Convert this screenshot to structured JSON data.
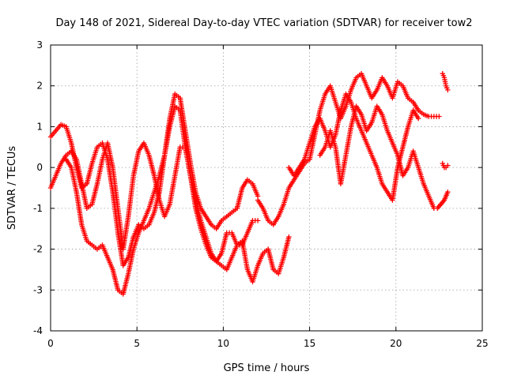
{
  "chart_data": {
    "type": "scatter",
    "title": "Day 148 of 2021, Sidereal Day-to-day VTEC variation (SDTVAR) for receiver tow2",
    "xlabel": "GPS time / hours",
    "ylabel": "SDTVAR / TECUs",
    "xlim": [
      0,
      25
    ],
    "ylim": [
      -4,
      3
    ],
    "xticks": [
      "0",
      "5",
      "10",
      "15",
      "20",
      "25"
    ],
    "yticks": [
      "-4",
      "-3",
      "-2",
      "-1",
      "0",
      "1",
      "2",
      "3"
    ],
    "grid": true,
    "marker": "+",
    "color": "#ff0000",
    "series": [
      {
        "x": [
          0.0,
          0.3,
          0.6,
          0.9,
          1.2,
          1.5,
          1.8,
          2.1,
          2.4,
          2.7,
          3.0,
          3.3,
          3.6,
          3.9,
          4.2,
          4.5,
          4.8,
          5.1,
          5.4,
          5.7,
          6.0,
          6.3,
          6.6,
          6.9,
          7.2,
          7.5,
          7.8,
          8.1,
          8.4,
          8.7,
          9.0,
          9.3,
          9.6,
          9.9,
          10.2,
          10.5,
          10.8,
          11.1,
          11.4,
          11.7,
          12.0
        ],
        "y": [
          0.75,
          0.9,
          1.05,
          1.0,
          0.6,
          0.0,
          -0.5,
          -0.4,
          0.1,
          0.5,
          0.6,
          0.2,
          -0.6,
          -1.6,
          -2.4,
          -2.2,
          -1.7,
          -1.4,
          -1.5,
          -1.4,
          -1.1,
          -0.6,
          0.3,
          1.2,
          1.8,
          1.7,
          0.9,
          0.1,
          -0.6,
          -1.0,
          -1.2,
          -1.4,
          -1.5,
          -1.3,
          -1.2,
          -1.1,
          -1.0,
          -0.5,
          -0.3,
          -0.4,
          -0.7
        ]
      },
      {
        "x": [
          0.0,
          0.3,
          0.6,
          0.9,
          1.2,
          1.5,
          1.8,
          2.1,
          2.4,
          2.7,
          3.0,
          3.3,
          3.6,
          3.9,
          4.2,
          4.5,
          4.8,
          5.1,
          5.4,
          5.7,
          6.0,
          6.3,
          6.6,
          6.9,
          7.2,
          7.5,
          7.8,
          8.1,
          8.4,
          8.7,
          9.0,
          9.3,
          9.6,
          9.9,
          10.2,
          10.5,
          10.8,
          11.1,
          11.4,
          11.7,
          12.0
        ],
        "y": [
          -0.5,
          -0.2,
          0.1,
          0.3,
          0.4,
          0.2,
          -0.4,
          -1.0,
          -0.9,
          -0.4,
          0.2,
          0.6,
          0.0,
          -1.0,
          -2.0,
          -1.2,
          -0.2,
          0.4,
          0.6,
          0.3,
          -0.2,
          -0.8,
          -1.2,
          -0.9,
          -0.2,
          0.5,
          0.5,
          -0.2,
          -1.0,
          -1.5,
          -1.9,
          -2.2,
          -2.3,
          -2.1,
          -1.6,
          -1.6,
          -1.9,
          -1.9,
          -1.6,
          -1.3,
          -1.3
        ]
      },
      {
        "x": [
          0.9,
          1.2,
          1.5,
          1.8,
          2.1,
          2.4,
          2.7,
          3.0,
          3.3,
          3.6,
          3.9,
          4.2,
          4.5,
          4.8,
          5.1,
          5.4,
          5.7,
          6.0,
          6.3,
          6.6,
          6.9,
          7.2,
          7.5,
          7.8,
          8.1,
          8.4,
          8.7,
          9.0,
          9.3,
          9.6,
          9.9,
          10.2,
          10.5,
          10.8,
          11.1,
          11.4,
          11.7,
          12.0,
          12.3,
          12.6,
          12.9,
          13.2,
          13.5,
          13.8
        ],
        "y": [
          0.2,
          0.0,
          -0.6,
          -1.4,
          -1.8,
          -1.9,
          -2.0,
          -1.9,
          -2.2,
          -2.5,
          -3.0,
          -3.1,
          -2.6,
          -2.0,
          -1.6,
          -1.3,
          -1.0,
          -0.6,
          -0.2,
          0.3,
          1.0,
          1.5,
          1.4,
          0.5,
          -0.2,
          -0.8,
          -1.3,
          -1.7,
          -2.1,
          -2.3,
          -2.4,
          -2.5,
          -2.2,
          -1.9,
          -1.8,
          -2.5,
          -2.8,
          -2.4,
          -2.1,
          -2.0,
          -2.5,
          -2.6,
          -2.2,
          -1.7
        ]
      },
      {
        "x": [
          12.0,
          12.3,
          12.6,
          12.9,
          13.2,
          13.5,
          13.8,
          14.1,
          14.4,
          14.7,
          15.0,
          15.3,
          15.6,
          15.9,
          16.2,
          16.5,
          16.8,
          17.1,
          17.4,
          17.7,
          18.0,
          18.3,
          18.6,
          18.9,
          19.2,
          19.5,
          19.8,
          20.1,
          20.4,
          20.7,
          21.0,
          21.3,
          21.6,
          21.9,
          22.2,
          22.5
        ],
        "y": [
          -0.8,
          -1.0,
          -1.3,
          -1.4,
          -1.2,
          -0.9,
          -0.5,
          -0.3,
          -0.1,
          0.1,
          0.2,
          0.8,
          1.4,
          1.8,
          2.0,
          1.6,
          1.2,
          1.5,
          1.9,
          2.2,
          2.3,
          2.0,
          1.7,
          1.9,
          2.2,
          2.0,
          1.7,
          2.1,
          2.0,
          1.7,
          1.6,
          1.4,
          1.3,
          1.25,
          1.25,
          1.25
        ]
      },
      {
        "x": [
          13.8,
          14.1,
          14.4,
          14.7,
          15.0,
          15.3,
          15.6,
          15.9,
          16.2,
          16.5,
          16.8,
          17.1,
          17.4,
          17.7,
          18.0,
          18.3,
          18.6,
          18.9,
          19.2,
          19.5,
          19.8,
          20.1,
          20.4,
          20.7,
          21.0,
          21.3
        ],
        "y": [
          0.0,
          -0.2,
          0.0,
          0.2,
          0.6,
          1.0,
          1.2,
          0.9,
          0.5,
          0.8,
          1.4,
          1.8,
          1.6,
          1.2,
          0.9,
          0.6,
          0.3,
          0.0,
          -0.4,
          -0.6,
          -0.8,
          0.0,
          0.5,
          1.0,
          1.4,
          1.2
        ]
      },
      {
        "x": [
          15.6,
          15.9,
          16.2,
          16.5,
          16.8,
          17.1,
          17.4,
          17.7,
          18.0,
          18.3,
          18.6,
          18.9,
          19.2,
          19.5,
          19.8,
          20.1,
          20.4,
          20.7,
          21.0,
          21.3,
          21.6,
          21.9,
          22.2
        ],
        "y": [
          0.3,
          0.5,
          0.9,
          0.5,
          -0.4,
          0.3,
          1.0,
          1.5,
          1.3,
          0.9,
          1.1,
          1.5,
          1.3,
          0.9,
          0.6,
          0.3,
          -0.2,
          0.0,
          0.4,
          0.0,
          -0.4,
          -0.7,
          -1.0
        ]
      },
      {
        "x": [
          22.7,
          22.8,
          22.9,
          23.0
        ],
        "y": [
          2.3,
          2.2,
          2.0,
          1.9
        ]
      },
      {
        "x": [
          22.7,
          22.8,
          22.9,
          23.0
        ],
        "y": [
          0.1,
          0.0,
          0.0,
          0.05
        ]
      },
      {
        "x": [
          22.4,
          22.6,
          22.8,
          23.0
        ],
        "y": [
          -1.0,
          -0.9,
          -0.8,
          -0.6
        ]
      }
    ]
  }
}
